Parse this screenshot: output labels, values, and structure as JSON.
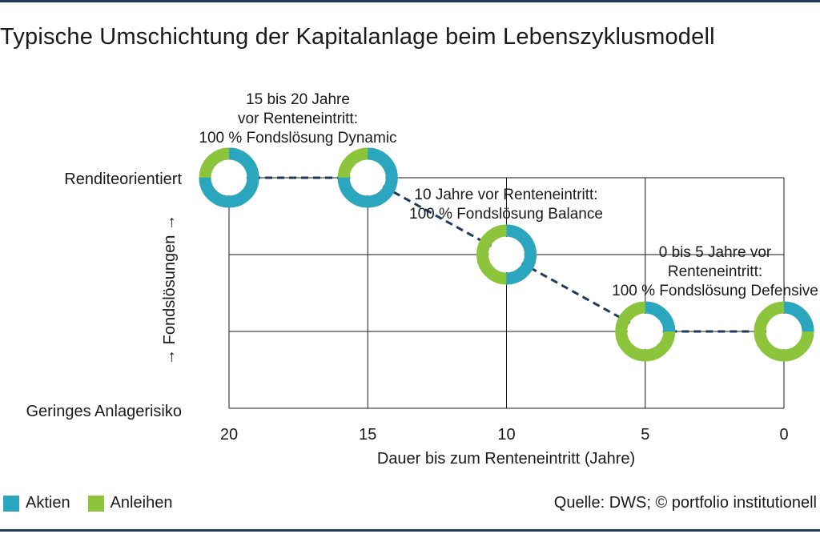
{
  "title": "Typische Umschichtung der Kapitalanlage beim Lebenszyklusmodell",
  "source": "Quelle: DWS; © portfolio institutionell",
  "colors": {
    "aktien": "#2aa7bf",
    "anleihen": "#8cc43c",
    "line": "#1f3a5a",
    "grid": "#1a1a1a"
  },
  "legend": [
    {
      "label": "Aktien",
      "color": "#2aa7bf"
    },
    {
      "label": "Anleihen",
      "color": "#8cc43c"
    }
  ],
  "chart_data": {
    "type": "line",
    "title": "Typische Umschichtung der Kapitalanlage beim Lebenszyklusmodell",
    "xlabel": "Dauer bis zum Renteneintritt (Jahre)",
    "ylabel": "→ Fondslösungen →",
    "x_ticks": [
      "20",
      "15",
      "10",
      "5",
      "0"
    ],
    "xlim": [
      20,
      0
    ],
    "y_levels": [
      "Geringes Anlagerisiko",
      "",
      "",
      "Renditeorientiert"
    ],
    "ylim": [
      0,
      3
    ],
    "series": [
      {
        "x": [
          20,
          15,
          10,
          5,
          0
        ],
        "y": [
          3,
          3,
          2,
          1,
          1
        ],
        "aktien_share": [
          0.75,
          0.75,
          0.5,
          0.25,
          0.25
        ]
      }
    ],
    "annotations": [
      {
        "lines": [
          "15 bis 20 Jahre",
          "vor Renteneintritt:",
          "100 % Fondslösung Dynamic"
        ]
      },
      {
        "lines": [
          "10 Jahre vor Renteneintritt:",
          "100 % Fondslösung Balance"
        ]
      },
      {
        "lines": [
          "0 bis 5 Jahre vor",
          "Renteneintritt:",
          "100 % Fondslösung Defensive"
        ]
      }
    ]
  }
}
